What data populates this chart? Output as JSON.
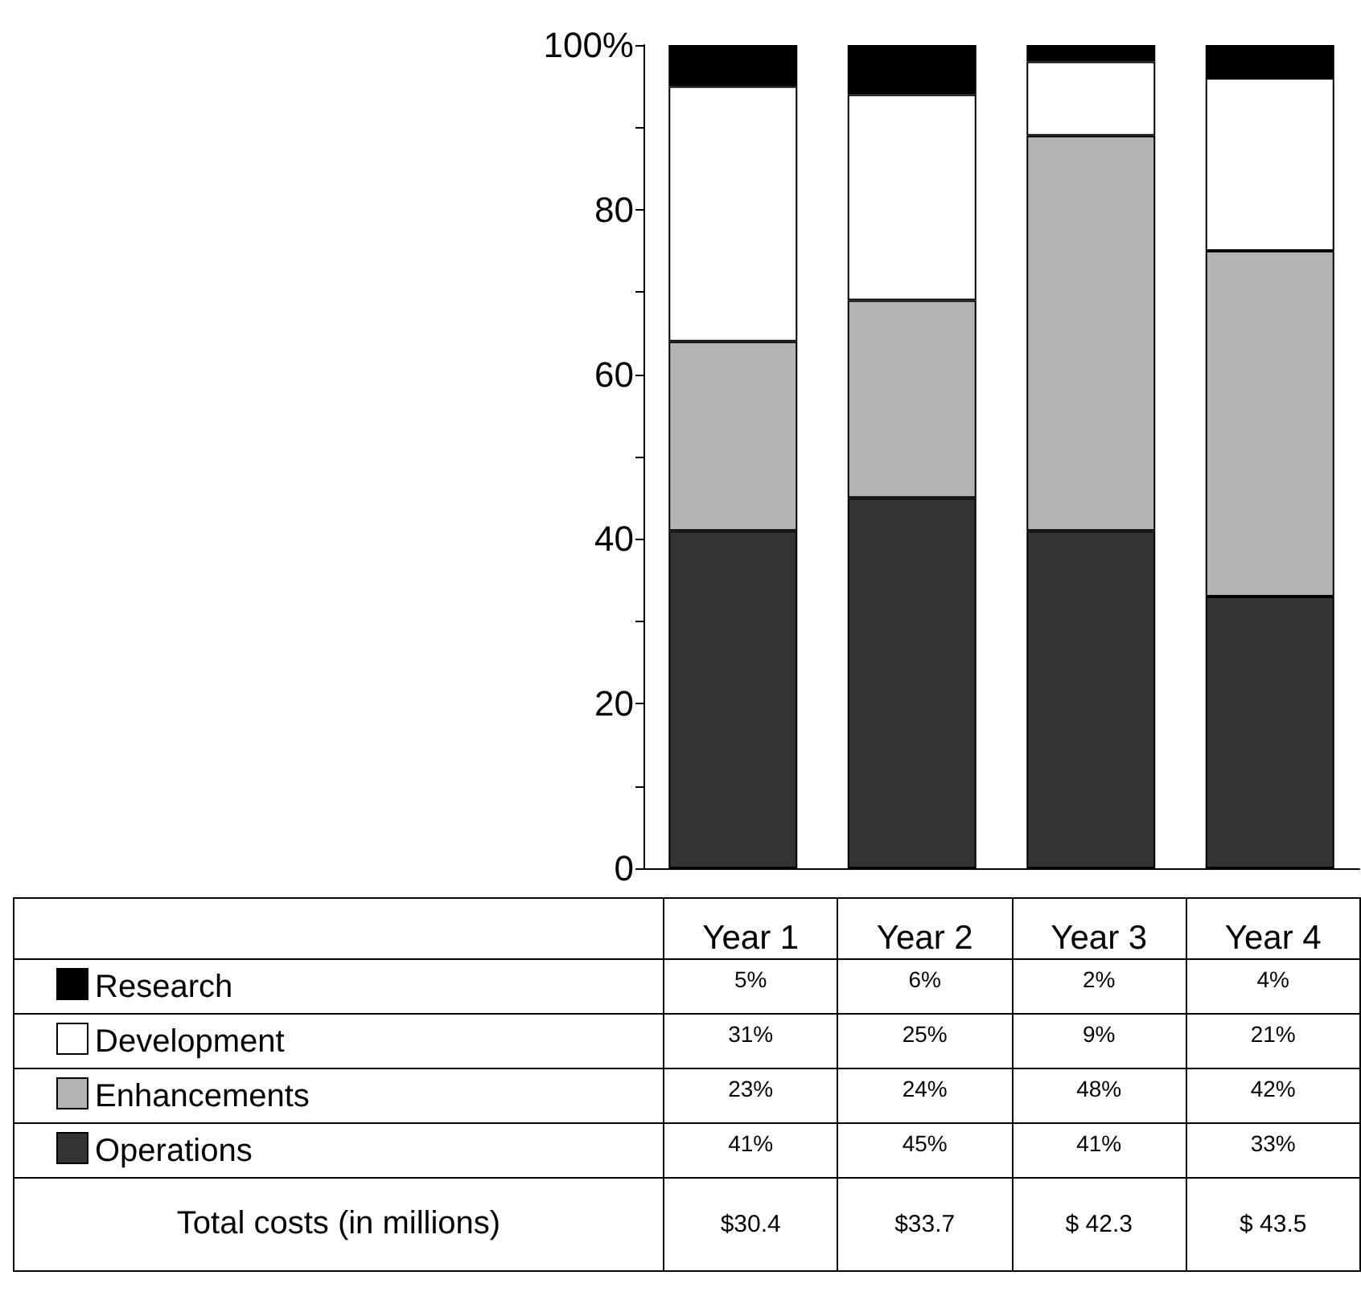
{
  "chart_data": {
    "type": "bar",
    "stacked": true,
    "categories": [
      "Year 1",
      "Year 2",
      "Year 3",
      "Year 4"
    ],
    "series": [
      {
        "name": "Operations",
        "color": "#333333",
        "values": [
          41,
          45,
          41,
          33
        ],
        "value_labels": [
          "41%",
          "45%",
          "41%",
          "33%"
        ]
      },
      {
        "name": "Enhancements",
        "color": "#b3b3b3",
        "values": [
          23,
          24,
          48,
          42
        ],
        "value_labels": [
          "23%",
          "24%",
          "48%",
          "42%"
        ]
      },
      {
        "name": "Development",
        "color": "#ffffff",
        "values": [
          31,
          25,
          9,
          21
        ],
        "value_labels": [
          "31%",
          "25%",
          "9%",
          "21%"
        ]
      },
      {
        "name": "Research",
        "color": "#000000",
        "values": [
          5,
          6,
          2,
          4
        ],
        "value_labels": [
          "5%",
          "6%",
          "2%",
          "4%"
        ]
      }
    ],
    "ylim": [
      0,
      100
    ],
    "yticks": [
      0,
      {
        "value": 10,
        "label": null
      },
      20,
      {
        "value": 30,
        "label": null
      },
      40,
      {
        "value": 50,
        "label": null
      },
      60,
      {
        "value": 70,
        "label": null
      },
      80,
      {
        "value": 90,
        "label": null
      },
      {
        "value": 100,
        "label": "100%"
      }
    ],
    "grid": false,
    "legend": "bottom",
    "annotations": [
      "Total costs (in millions)",
      "$30.4",
      "$33.7",
      "$ 42.3",
      "$ 43.5"
    ]
  }
}
